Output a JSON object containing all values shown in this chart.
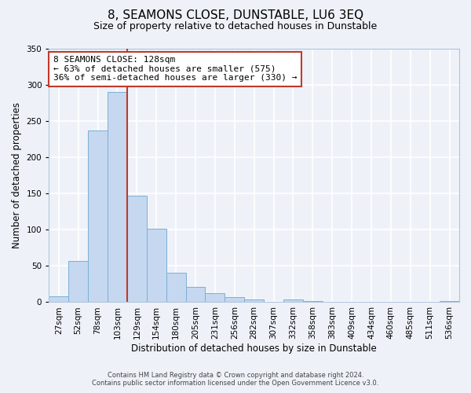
{
  "title": "8, SEAMONS CLOSE, DUNSTABLE, LU6 3EQ",
  "subtitle": "Size of property relative to detached houses in Dunstable",
  "xlabel": "Distribution of detached houses by size in Dunstable",
  "ylabel": "Number of detached properties",
  "bar_labels": [
    "27sqm",
    "52sqm",
    "78sqm",
    "103sqm",
    "129sqm",
    "154sqm",
    "180sqm",
    "205sqm",
    "231sqm",
    "256sqm",
    "282sqm",
    "307sqm",
    "332sqm",
    "358sqm",
    "383sqm",
    "409sqm",
    "434sqm",
    "460sqm",
    "485sqm",
    "511sqm",
    "536sqm"
  ],
  "bar_values": [
    8,
    57,
    237,
    290,
    147,
    101,
    41,
    21,
    12,
    7,
    4,
    0,
    4,
    2,
    0,
    0,
    0,
    0,
    0,
    0,
    2
  ],
  "bar_color": "#c5d8f0",
  "bar_edge_color": "#7bafd4",
  "vline_x": 3.5,
  "vline_color": "#c0392b",
  "annotation_line1": "8 SEAMONS CLOSE: 128sqm",
  "annotation_line2": "← 63% of detached houses are smaller (575)",
  "annotation_line3": "36% of semi-detached houses are larger (330) →",
  "annotation_box_edge": "#c0392b",
  "ylim": [
    0,
    350
  ],
  "yticks": [
    0,
    50,
    100,
    150,
    200,
    250,
    300,
    350
  ],
  "footer1": "Contains HM Land Registry data © Crown copyright and database right 2024.",
  "footer2": "Contains public sector information licensed under the Open Government Licence v3.0.",
  "bg_color": "#eef2f8",
  "plot_bg_color": "#eef2f8",
  "grid_color": "#ffffff",
  "title_fontsize": 11,
  "subtitle_fontsize": 9,
  "label_fontsize": 8.5,
  "tick_fontsize": 7.5,
  "annotation_fontsize": 8,
  "footer_fontsize": 6
}
